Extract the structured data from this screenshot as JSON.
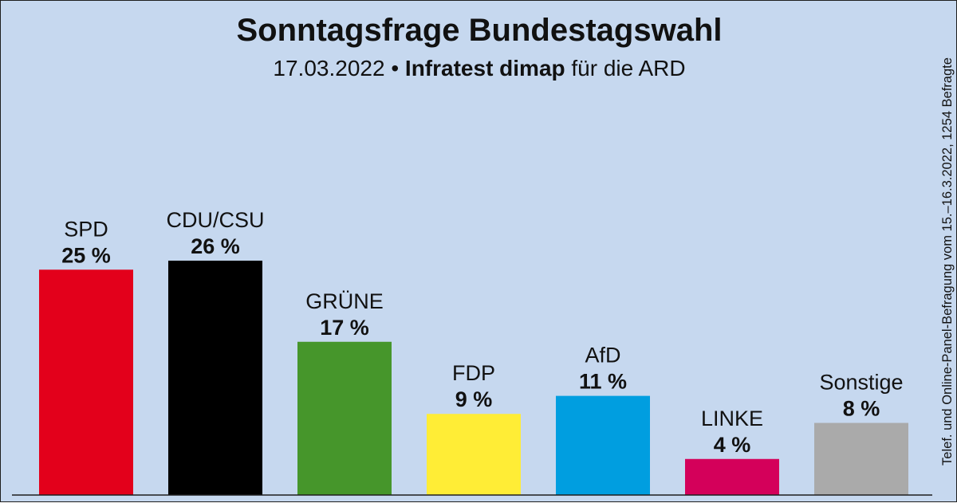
{
  "title": "Sonntagsfrage Bundestagswahl",
  "subtitle": {
    "date": "17.03.2022",
    "separator": "•",
    "agency": "Infratest dimap",
    "suffix": "für die ARD"
  },
  "source_note": "Telef. und Online-Panel-Befragung vom 15.–16.3.2022, 1254 Befragte",
  "chart_data": {
    "type": "bar",
    "title": "Sonntagsfrage Bundestagswahl",
    "xlabel": "",
    "ylabel": "",
    "ylim": [
      0,
      26
    ],
    "grid": false,
    "legend": "none",
    "categories": [
      "SPD",
      "CDU/CSU",
      "GRÜNE",
      "FDP",
      "AfD",
      "LINKE",
      "Sonstige"
    ],
    "values": [
      25,
      26,
      17,
      9,
      11,
      4,
      8
    ],
    "value_labels": [
      "25 %",
      "26 %",
      "17 %",
      "9 %",
      "11 %",
      "4 %",
      "8 %"
    ],
    "colors": [
      "#e3001b",
      "#000000",
      "#46962b",
      "#ffed36",
      "#009ee0",
      "#d4005a",
      "#aaaaaa"
    ]
  }
}
